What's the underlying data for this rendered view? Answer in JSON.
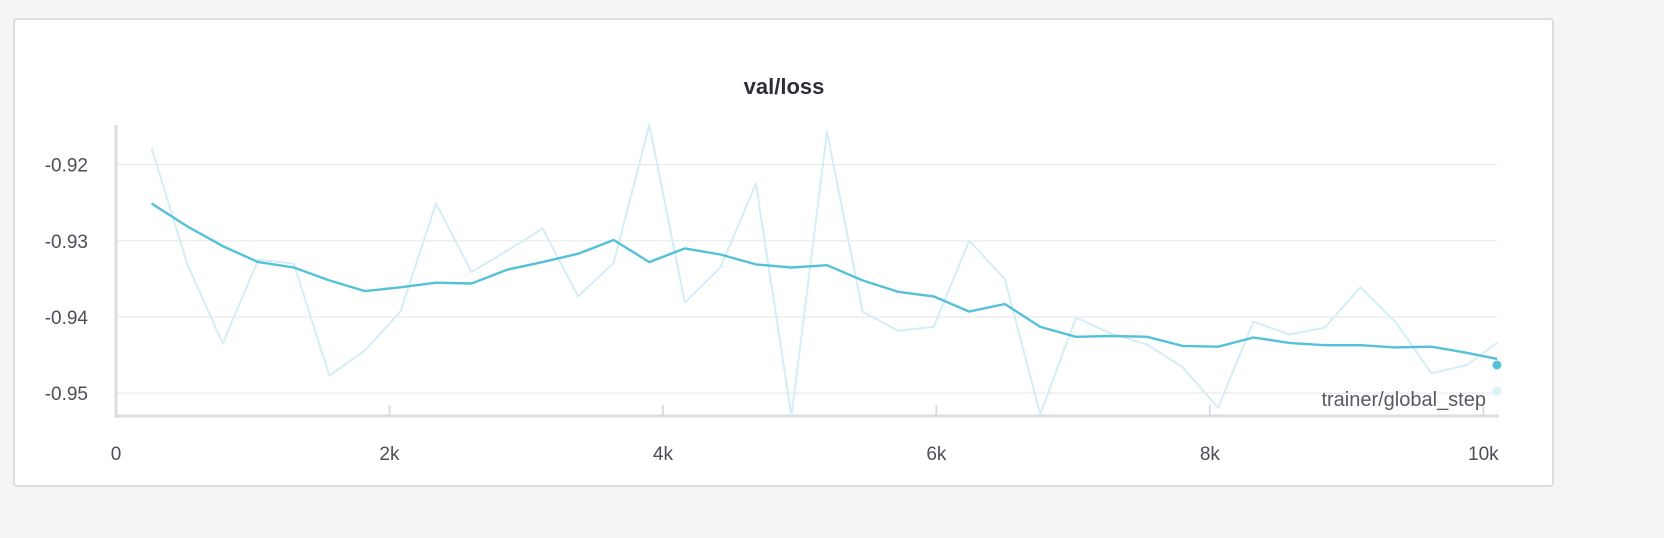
{
  "chart_data": {
    "type": "line",
    "title": "val/loss",
    "xlabel": "trainer/global_step",
    "ylabel": "",
    "xlim": [
      0,
      10100
    ],
    "ylim": [
      -0.953,
      -0.9148
    ],
    "x_ticks": [
      0,
      2000,
      4000,
      6000,
      8000,
      10000
    ],
    "x_tick_labels": [
      "0",
      "2k",
      "4k",
      "6k",
      "8k",
      "10k"
    ],
    "y_ticks": [
      -0.92,
      -0.93,
      -0.94,
      -0.95
    ],
    "y_tick_labels": [
      "-0.92",
      "-0.93",
      "-0.94",
      "-0.95"
    ],
    "grid": true,
    "legend": "none",
    "colors": {
      "smoothed": "#55c1d9",
      "raw": "#d3eef5"
    },
    "x": [
      260,
      520,
      780,
      1040,
      1300,
      1560,
      1820,
      2080,
      2340,
      2600,
      2860,
      3120,
      3380,
      3640,
      3900,
      4160,
      4420,
      4680,
      4940,
      5200,
      5460,
      5720,
      5980,
      6240,
      6500,
      6760,
      7020,
      7280,
      7540,
      7800,
      8060,
      8320,
      8580,
      8840,
      9100,
      9360,
      9620,
      9880,
      10100
    ],
    "series": [
      {
        "values": [
          -0.9178,
          -0.933,
          -0.9435,
          -0.9325,
          -0.933,
          -0.9477,
          -0.9444,
          -0.9393,
          -0.9251,
          -0.9341,
          -0.9313,
          -0.9284,
          -0.9373,
          -0.9329,
          -0.9148,
          -0.9381,
          -0.9335,
          -0.9225,
          -0.953,
          -0.9157,
          -0.9393,
          -0.9418,
          -0.9413,
          -0.93,
          -0.935,
          -0.9528,
          -0.9401,
          -0.9422,
          -0.9436,
          -0.9466,
          -0.9519,
          -0.9406,
          -0.9423,
          -0.9414,
          -0.9361,
          -0.9407,
          -0.9474,
          -0.9463,
          -0.9434
        ]
      },
      {
        "values": [
          -0.9251,
          -0.9281,
          -0.9307,
          -0.9328,
          -0.9335,
          -0.9352,
          -0.9366,
          -0.9361,
          -0.9355,
          -0.9356,
          -0.9338,
          -0.9328,
          -0.9317,
          -0.9299,
          -0.9328,
          -0.931,
          -0.9318,
          -0.9331,
          -0.9335,
          -0.9332,
          -0.9352,
          -0.9367,
          -0.9373,
          -0.9393,
          -0.9383,
          -0.9413,
          -0.9426,
          -0.9425,
          -0.9426,
          -0.9438,
          -0.9439,
          -0.9427,
          -0.9434,
          -0.9437,
          -0.9437,
          -0.944,
          -0.9439,
          -0.9447,
          -0.9455
        ]
      }
    ]
  }
}
